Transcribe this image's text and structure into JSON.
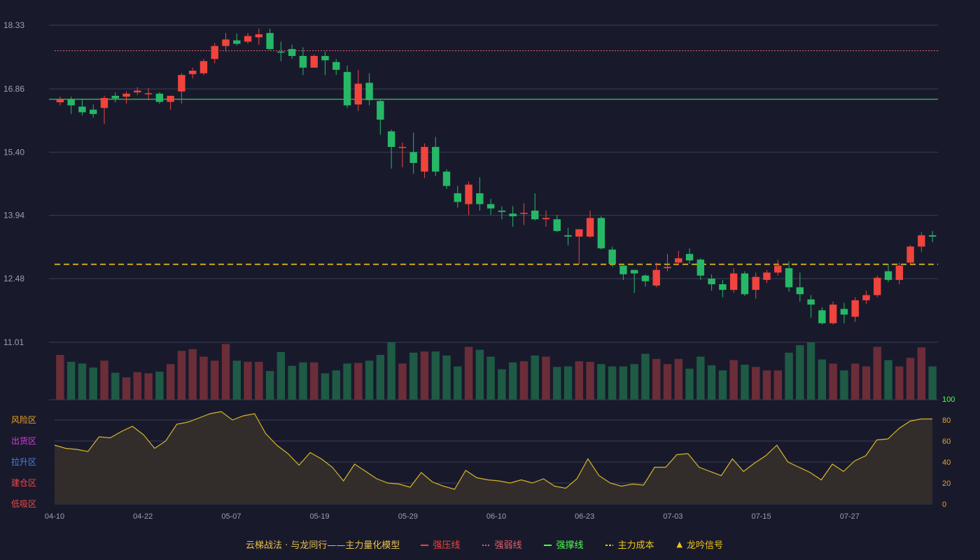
{
  "colors": {
    "background": "#181a2c",
    "grid": "#3a3e52",
    "up": "#f0443c",
    "down": "#26b866",
    "vol_up": "#6b2d38",
    "vol_down": "#1e5a44",
    "axis_text": "#9aa0b0",
    "support_line": "#4fd06a",
    "weak_line": "#e0606a",
    "cost_line": "#f2c417",
    "osc_line": "#d8b42a",
    "osc_fill": "#35302a",
    "osc_right_top": "#4cff4c",
    "osc_right": "#f0a020"
  },
  "chart_data": {
    "type": "candlestick",
    "y_ticks": [
      "18.33",
      "16.86",
      "15.40",
      "13.94",
      "12.48",
      "11.01"
    ],
    "ylim": [
      11.01,
      18.33
    ],
    "x_ticks": [
      {
        "index": 0,
        "label": "04-10"
      },
      {
        "index": 8,
        "label": "04-22"
      },
      {
        "index": 16,
        "label": "05-07"
      },
      {
        "index": 24,
        "label": "05-19"
      },
      {
        "index": 32,
        "label": "05-29"
      },
      {
        "index": 40,
        "label": "06-10"
      },
      {
        "index": 48,
        "label": "06-23"
      },
      {
        "index": 56,
        "label": "07-03"
      },
      {
        "index": 64,
        "label": "07-15"
      },
      {
        "index": 72,
        "label": "07-27"
      }
    ],
    "candles": [
      [
        16.55,
        16.68,
        16.62,
        16.48
      ],
      [
        16.62,
        16.68,
        16.48,
        16.28
      ],
      [
        16.45,
        16.62,
        16.32,
        16.25
      ],
      [
        16.38,
        16.5,
        16.28,
        16.2
      ],
      [
        16.42,
        16.7,
        16.65,
        16.05
      ],
      [
        16.7,
        16.78,
        16.64,
        16.55
      ],
      [
        16.68,
        16.8,
        16.75,
        16.52
      ],
      [
        16.78,
        16.9,
        16.82,
        16.72
      ],
      [
        16.76,
        16.88,
        16.76,
        16.6
      ],
      [
        16.75,
        16.78,
        16.56,
        16.52
      ],
      [
        16.56,
        16.67,
        16.7,
        16.38
      ],
      [
        16.8,
        17.22,
        17.18,
        16.52
      ],
      [
        17.2,
        17.35,
        17.28,
        17.1
      ],
      [
        17.22,
        17.55,
        17.5,
        17.18
      ],
      [
        17.55,
        17.92,
        17.85,
        17.45
      ],
      [
        17.85,
        18.15,
        18.0,
        17.72
      ],
      [
        17.98,
        18.14,
        17.9,
        17.86
      ],
      [
        17.95,
        18.15,
        18.08,
        17.9
      ],
      [
        18.05,
        18.25,
        18.12,
        17.88
      ],
      [
        18.15,
        18.25,
        17.78,
        17.75
      ],
      [
        17.72,
        17.95,
        17.7,
        17.5
      ],
      [
        17.78,
        17.88,
        17.62,
        17.55
      ],
      [
        17.62,
        17.82,
        17.35,
        17.18
      ],
      [
        17.35,
        17.65,
        17.62,
        17.35
      ],
      [
        17.62,
        17.72,
        17.52,
        17.18
      ],
      [
        17.48,
        17.55,
        17.3,
        17.18
      ],
      [
        17.25,
        17.4,
        16.48,
        16.42
      ],
      [
        16.5,
        17.3,
        16.98,
        16.35
      ],
      [
        17.0,
        17.22,
        16.6,
        16.48
      ],
      [
        16.58,
        16.62,
        16.15,
        15.8
      ],
      [
        15.88,
        15.92,
        15.52,
        15.02
      ],
      [
        15.52,
        15.62,
        15.52,
        15.05
      ],
      [
        15.4,
        15.85,
        15.15,
        14.9
      ],
      [
        14.95,
        15.6,
        15.52,
        14.8
      ],
      [
        15.52,
        15.75,
        14.95,
        14.85
      ],
      [
        14.95,
        15.0,
        14.62,
        14.55
      ],
      [
        14.45,
        14.62,
        14.25,
        14.12
      ],
      [
        14.2,
        14.72,
        14.65,
        13.95
      ],
      [
        14.45,
        14.82,
        14.2,
        14.05
      ],
      [
        14.2,
        14.32,
        14.1,
        13.95
      ],
      [
        14.05,
        14.15,
        14.02,
        13.85
      ],
      [
        13.98,
        14.15,
        13.92,
        13.68
      ],
      [
        13.98,
        14.22,
        14.0,
        13.72
      ],
      [
        14.05,
        14.45,
        13.85,
        13.82
      ],
      [
        13.85,
        14.05,
        13.88,
        13.68
      ],
      [
        13.85,
        13.95,
        13.58,
        13.55
      ],
      [
        13.48,
        13.65,
        13.45,
        13.25
      ],
      [
        13.45,
        13.62,
        13.62,
        12.82
      ],
      [
        13.45,
        14.05,
        13.88,
        13.42
      ],
      [
        13.88,
        13.92,
        13.18,
        13.15
      ],
      [
        13.15,
        13.22,
        12.82,
        12.75
      ],
      [
        12.78,
        12.78,
        12.58,
        12.45
      ],
      [
        12.68,
        12.68,
        12.6,
        12.15
      ],
      [
        12.55,
        12.58,
        12.42,
        12.3
      ],
      [
        12.32,
        12.85,
        12.68,
        12.28
      ],
      [
        12.72,
        13.05,
        12.75,
        12.65
      ],
      [
        12.85,
        13.12,
        12.95,
        12.8
      ],
      [
        13.05,
        13.18,
        12.9,
        12.82
      ],
      [
        12.92,
        12.95,
        12.55,
        12.45
      ],
      [
        12.48,
        12.58,
        12.35,
        12.2
      ],
      [
        12.35,
        12.45,
        12.22,
        12.05
      ],
      [
        12.22,
        12.72,
        12.6,
        12.15
      ],
      [
        12.6,
        12.65,
        12.12,
        12.08
      ],
      [
        12.22,
        12.62,
        12.52,
        12.02
      ],
      [
        12.45,
        12.68,
        12.62,
        12.38
      ],
      [
        12.62,
        12.92,
        12.78,
        12.55
      ],
      [
        12.72,
        12.88,
        12.28,
        12.18
      ],
      [
        12.28,
        12.62,
        12.12,
        11.95
      ],
      [
        12.0,
        12.1,
        11.88,
        11.58
      ],
      [
        11.75,
        11.82,
        11.45,
        11.42
      ],
      [
        11.45,
        11.95,
        11.88,
        11.42
      ],
      [
        11.78,
        11.92,
        11.65,
        11.45
      ],
      [
        11.6,
        12.05,
        11.98,
        11.48
      ],
      [
        11.98,
        12.2,
        12.1,
        11.9
      ],
      [
        12.1,
        12.55,
        12.5,
        12.05
      ],
      [
        12.65,
        12.82,
        12.45,
        12.4
      ],
      [
        12.45,
        12.85,
        12.78,
        12.35
      ],
      [
        12.85,
        13.25,
        13.22,
        12.82
      ],
      [
        13.22,
        13.55,
        13.48,
        13.1
      ],
      [
        13.48,
        13.58,
        13.45,
        13.32
      ]
    ],
    "volumes": [
      0.78,
      0.66,
      0.63,
      0.56,
      0.68,
      0.47,
      0.39,
      0.48,
      0.46,
      0.49,
      0.62,
      0.85,
      0.88,
      0.75,
      0.68,
      0.97,
      0.68,
      0.66,
      0.66,
      0.5,
      0.83,
      0.59,
      0.65,
      0.65,
      0.46,
      0.51,
      0.63,
      0.64,
      0.68,
      0.78,
      1.0,
      0.63,
      0.82,
      0.84,
      0.84,
      0.77,
      0.58,
      0.92,
      0.87,
      0.75,
      0.53,
      0.65,
      0.67,
      0.77,
      0.75,
      0.57,
      0.58,
      0.67,
      0.66,
      0.62,
      0.58,
      0.58,
      0.62,
      0.8,
      0.71,
      0.62,
      0.71,
      0.54,
      0.75,
      0.6,
      0.51,
      0.69,
      0.61,
      0.57,
      0.51,
      0.51,
      0.82,
      0.95,
      1.0,
      0.7,
      0.63,
      0.51,
      0.63,
      0.58,
      0.92,
      0.69,
      0.58,
      0.73,
      0.91,
      0.58
    ],
    "oscillator": [
      56,
      53,
      52,
      50,
      64,
      63,
      69,
      74,
      66,
      53,
      60,
      76,
      78,
      82,
      86,
      88,
      80,
      84,
      86,
      67,
      56,
      48,
      37,
      49,
      43,
      35,
      22,
      38,
      31,
      24,
      20,
      19,
      16,
      30,
      21,
      17,
      14,
      32,
      25,
      23,
      22,
      20,
      23,
      20,
      24,
      17,
      15,
      24,
      43,
      27,
      20,
      17,
      19,
      18,
      35,
      35,
      47,
      48,
      35,
      31,
      27,
      43,
      31,
      39,
      46,
      56,
      40,
      35,
      30,
      23,
      38,
      31,
      41,
      46,
      61,
      62,
      72,
      79,
      81,
      81
    ],
    "osc_ylim": [
      0,
      100
    ],
    "osc_right_ticks": [
      "100",
      "80",
      "60",
      "40",
      "20",
      "0"
    ],
    "osc_left_labels": [
      {
        "label": "风险区",
        "value": 80,
        "color": "#f0a020"
      },
      {
        "label": "出货区",
        "value": 60,
        "color": "#d040d0"
      },
      {
        "label": "拉升区",
        "value": 40,
        "color": "#4a80e8"
      },
      {
        "label": "建仓区",
        "value": 20,
        "color": "#f04848"
      },
      {
        "label": "低吸区",
        "value": 0,
        "color": "#f04848"
      }
    ],
    "lines": {
      "support": 16.62,
      "weak": 17.74,
      "cost": 12.81
    }
  },
  "legend": {
    "title": "云梯战法 · 与龙同行——主力量化模型",
    "items": [
      {
        "label": "强压线",
        "color": "#f0443c",
        "style": "solid"
      },
      {
        "label": "强弱线",
        "color": "#e0606a",
        "style": "dotted"
      },
      {
        "label": "强撑线",
        "color": "#4cff4c",
        "style": "solid"
      },
      {
        "label": "主力成本",
        "color": "#f2c417",
        "style": "dashed"
      },
      {
        "label": "龙吟信号",
        "color": "#f2c417",
        "style": "triangle"
      }
    ],
    "triangle_glyph": "▲"
  }
}
